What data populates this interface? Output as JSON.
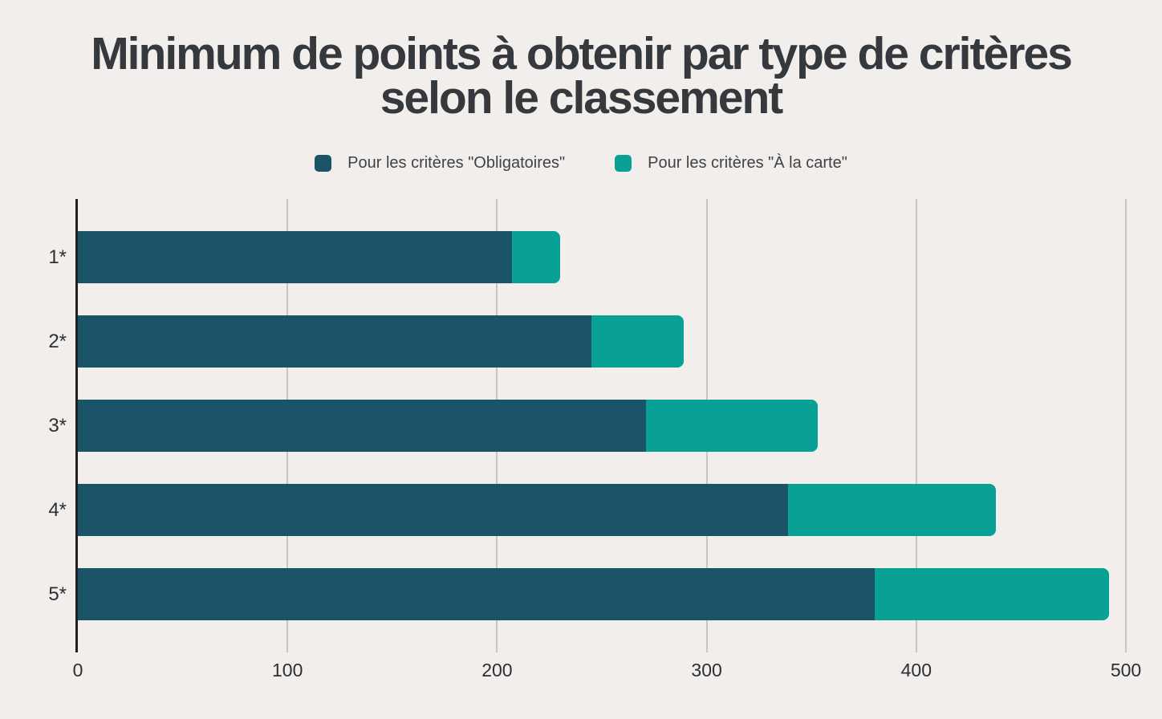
{
  "title": "Minimum de points à obtenir par type de critères selon le classement",
  "colors": {
    "background": "#f2eeec",
    "gridline": "#c9c5c3",
    "axis_line": "#1f2023",
    "title_text": "#35383c",
    "legend_text": "#3f4246",
    "tick_text": "#2c2f33"
  },
  "chart_data": {
    "type": "bar",
    "orientation": "horizontal",
    "stacked": true,
    "title": "Minimum de points à obtenir par type de critères selon le classement",
    "categories": [
      "1*",
      "2*",
      "3*",
      "4*",
      "5*"
    ],
    "series": [
      {
        "name": "Pour les critères \"Obligatoires\"",
        "color": "#1b5468",
        "values": [
          207,
          245,
          271,
          339,
          380
        ]
      },
      {
        "name": "Pour les critères \"À la carte\"",
        "color": "#09a095",
        "values": [
          23,
          44,
          82,
          99,
          112
        ]
      }
    ],
    "stack_totals": [
      230,
      289,
      353,
      438,
      492
    ],
    "xlim": [
      0,
      500
    ],
    "x_ticks": [
      0,
      100,
      200,
      300,
      400,
      500
    ],
    "grid": true,
    "legend_position": "top"
  }
}
